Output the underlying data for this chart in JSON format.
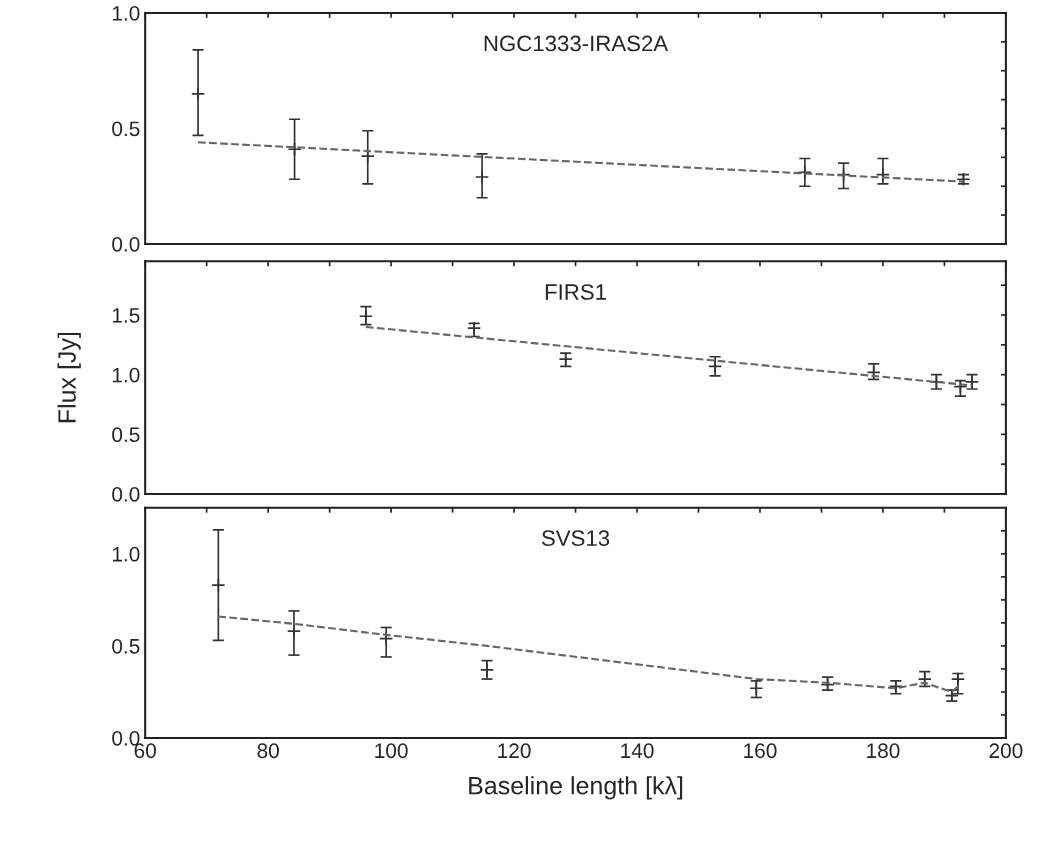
{
  "chart_data": [
    {
      "type": "scatter",
      "title": "NGC1333-IRAS2A",
      "tick_labels": "y",
      "grid": false,
      "xlim": [
        60,
        200
      ],
      "xticks": [
        60,
        {
          "value": 70,
          "label": null
        },
        80,
        {
          "value": 90,
          "label": null
        },
        100,
        {
          "value": 110,
          "label": null
        },
        120,
        {
          "value": 130,
          "label": null
        },
        140,
        {
          "value": 150,
          "label": null
        },
        160,
        {
          "value": 170,
          "label": null
        },
        180,
        {
          "value": 190,
          "label": null
        },
        200
      ],
      "ylim": [
        0,
        1.0
      ],
      "yticks": [
        {
          "value": 0,
          "label": "0.0"
        },
        {
          "value": 0.125,
          "label": null
        },
        {
          "value": 0.25,
          "label": null
        },
        {
          "value": 0.375,
          "label": null
        },
        {
          "value": 0.5,
          "label": "0.5"
        },
        {
          "value": 0.625,
          "label": null
        },
        {
          "value": 0.75,
          "label": null
        },
        {
          "value": 0.875,
          "label": null
        },
        {
          "value": 1.0,
          "label": "1.0"
        }
      ],
      "series": [
        {
          "color": "#333333",
          "marker": "cross",
          "x": [
            68.6,
            84.3,
            96.2,
            114.8,
            167.3,
            173.6,
            180.0,
            193.1
          ],
          "values": [
            0.65,
            0.41,
            0.38,
            0.29,
            0.31,
            0.3,
            0.3,
            0.28
          ],
          "errors": [
            [
              0.47,
              0.84
            ],
            [
              0.28,
              0.54
            ],
            [
              0.26,
              0.49
            ],
            [
              0.2,
              0.39
            ],
            [
              0.25,
              0.37
            ],
            [
              0.24,
              0.35
            ],
            [
              0.26,
              0.37
            ],
            [
              0.26,
              0.3
            ]
          ]
        },
        {
          "type": "line",
          "color": "#666666",
          "line_style": "dashed",
          "x": [
            68.6,
            193.1
          ],
          "values": [
            0.44,
            0.27
          ]
        }
      ]
    },
    {
      "type": "scatter",
      "title": "FIRS1",
      "tick_labels": "y",
      "grid": false,
      "ylabel": "Flux [Jy]",
      "xlim": [
        60,
        200
      ],
      "xticks": [
        60,
        {
          "value": 70,
          "label": null
        },
        80,
        {
          "value": 90,
          "label": null
        },
        100,
        {
          "value": 110,
          "label": null
        },
        120,
        {
          "value": 130,
          "label": null
        },
        140,
        {
          "value": 150,
          "label": null
        },
        160,
        {
          "value": 170,
          "label": null
        },
        180,
        {
          "value": 190,
          "label": null
        },
        200
      ],
      "ylim": [
        0,
        1.95
      ],
      "yticks": [
        {
          "value": 0,
          "label": "0.0"
        },
        {
          "value": 0.25,
          "label": null
        },
        {
          "value": 0.5,
          "label": "0.5"
        },
        {
          "value": 0.75,
          "label": null
        },
        {
          "value": 1.0,
          "label": "1.0"
        },
        {
          "value": 1.25,
          "label": null
        },
        {
          "value": 1.5,
          "label": "1.5"
        },
        {
          "value": 1.75,
          "label": null
        }
      ],
      "series": [
        {
          "color": "#333333",
          "marker": "cross",
          "x": [
            95.9,
            113.5,
            128.4,
            152.7,
            178.5,
            188.7,
            192.6,
            194.5
          ],
          "values": [
            1.49,
            1.39,
            1.13,
            1.07,
            1.02,
            0.94,
            0.9,
            0.94
          ],
          "errors": [
            [
              1.42,
              1.57
            ],
            [
              1.32,
              1.43
            ],
            [
              1.07,
              1.18
            ],
            [
              0.99,
              1.15
            ],
            [
              0.96,
              1.09
            ],
            [
              0.88,
              1.0
            ],
            [
              0.82,
              0.95
            ],
            [
              0.88,
              1.0
            ]
          ]
        },
        {
          "type": "line",
          "color": "#666666",
          "line_style": "dashed",
          "x": [
            95.9,
            194.5
          ],
          "values": [
            1.4,
            0.91
          ]
        }
      ]
    },
    {
      "type": "scatter",
      "title": "SVS13",
      "grid": false,
      "xlabel": "Baseline length [kλ]",
      "xlim": [
        60,
        200
      ],
      "xticks": [
        60,
        {
          "value": 70,
          "label": null
        },
        80,
        {
          "value": 90,
          "label": null
        },
        100,
        {
          "value": 110,
          "label": null
        },
        120,
        {
          "value": 130,
          "label": null
        },
        140,
        {
          "value": 150,
          "label": null
        },
        160,
        {
          "value": 170,
          "label": null
        },
        180,
        {
          "value": 190,
          "label": null
        },
        200
      ],
      "ylim": [
        0,
        1.25
      ],
      "yticks": [
        {
          "value": 0,
          "label": "0.0"
        },
        {
          "value": 0.125,
          "label": null
        },
        {
          "value": 0.25,
          "label": null
        },
        {
          "value": 0.375,
          "label": null
        },
        {
          "value": 0.5,
          "label": "0.5"
        },
        {
          "value": 0.625,
          "label": null
        },
        {
          "value": 0.75,
          "label": null
        },
        {
          "value": 0.875,
          "label": null
        },
        {
          "value": 1.0,
          "label": "1.0"
        },
        {
          "value": 1.125,
          "label": null
        }
      ],
      "series": [
        {
          "color": "#333333",
          "marker": "cross",
          "x": [
            71.9,
            84.2,
            99.2,
            115.6,
            159.4,
            171.0,
            182.1,
            186.8,
            191.2,
            192.2
          ],
          "values": [
            0.83,
            0.58,
            0.54,
            0.37,
            0.27,
            0.29,
            0.28,
            0.32,
            0.23,
            0.32
          ],
          "errors": [
            [
              0.53,
              1.13
            ],
            [
              0.45,
              0.69
            ],
            [
              0.44,
              0.6
            ],
            [
              0.32,
              0.42
            ],
            [
              0.22,
              0.31
            ],
            [
              0.26,
              0.33
            ],
            [
              0.24,
              0.31
            ],
            [
              0.28,
              0.36
            ],
            [
              0.2,
              0.26
            ],
            [
              0.24,
              0.35
            ]
          ]
        },
        {
          "type": "line",
          "color": "#666666",
          "line_style": "dashed",
          "x": [
            71.9,
            84.2,
            99.2,
            115.6,
            159.4,
            171.0,
            182.1,
            186.8,
            191.2,
            192.2
          ],
          "values": [
            0.66,
            0.62,
            0.56,
            0.5,
            0.32,
            0.3,
            0.27,
            0.3,
            0.25,
            0.28
          ]
        }
      ]
    }
  ]
}
